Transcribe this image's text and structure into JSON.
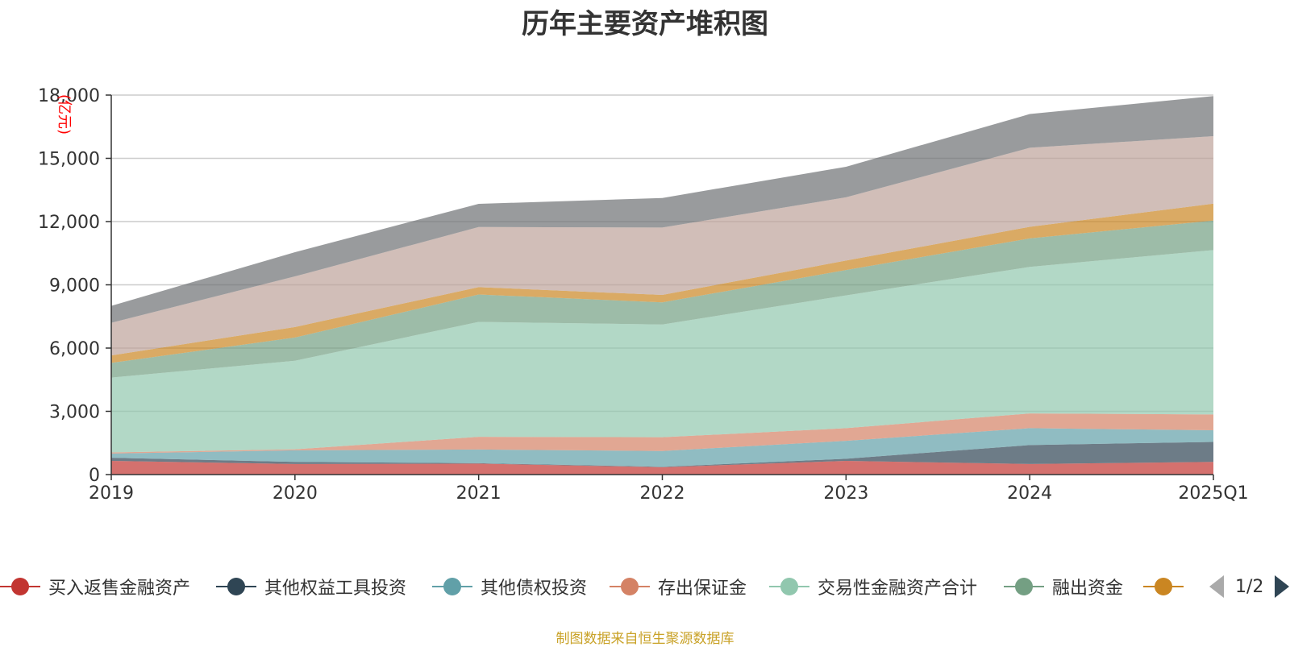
{
  "chart_data": {
    "type": "area",
    "stacked": true,
    "title": "历年主要资产堆积图",
    "ylabel": "(亿元)",
    "xlabel": "",
    "categories": [
      "2019",
      "2020",
      "2021",
      "2022",
      "2023",
      "2024",
      "2025Q1"
    ],
    "ylim": [
      0,
      18000
    ],
    "yticks": [
      0,
      3000,
      6000,
      9000,
      12000,
      15000,
      18000
    ],
    "ytick_labels": [
      "0",
      "3,000",
      "6,000",
      "9,000",
      "12,000",
      "15,000",
      "18,000"
    ],
    "grid": true,
    "legend_position": "bottom",
    "series": [
      {
        "name": "买入返售金融资产",
        "color": "#c23531",
        "values": [
          650,
          500,
          520,
          350,
          650,
          500,
          600
        ]
      },
      {
        "name": "其他权益工具投资",
        "color": "#2f4554",
        "values": [
          150,
          100,
          20,
          20,
          100,
          900,
          950
        ]
      },
      {
        "name": "其他债权投资",
        "color": "#61a0a8",
        "values": [
          200,
          550,
          650,
          750,
          850,
          800,
          550
        ]
      },
      {
        "name": "存出保证金",
        "color": "#d48265",
        "values": [
          50,
          50,
          600,
          650,
          600,
          700,
          750
        ]
      },
      {
        "name": "交易性金融资产合计",
        "color": "#91c7ae",
        "values": [
          3550,
          4200,
          5450,
          5350,
          6300,
          6950,
          7800
        ]
      },
      {
        "name": "融出资金",
        "color": "#749f83",
        "values": [
          700,
          1100,
          1300,
          1050,
          1200,
          1350,
          1400
        ]
      },
      {
        "name": "",
        "color": "#ca8622",
        "values": [
          350,
          500,
          350,
          350,
          450,
          550,
          800
        ]
      },
      {
        "name": "",
        "color": "#bda29a",
        "values": [
          1550,
          2400,
          2850,
          3200,
          3000,
          3750,
          3200
        ]
      },
      {
        "name": "",
        "color": "#6e7074",
        "values": [
          800,
          1150,
          1100,
          1400,
          1450,
          1600,
          1900
        ]
      }
    ]
  },
  "legend": {
    "items": [
      {
        "label": "买入返售金融资产",
        "color": "#c23531"
      },
      {
        "label": "其他权益工具投资",
        "color": "#2f4554"
      },
      {
        "label": "其他债权投资",
        "color": "#61a0a8"
      },
      {
        "label": "存出保证金",
        "color": "#d48265"
      },
      {
        "label": "交易性金融资产合计",
        "color": "#91c7ae"
      },
      {
        "label": "融出资金",
        "color": "#749f83"
      },
      {
        "label": "",
        "color": "#ca8622"
      }
    ],
    "page_indicator": "1/2"
  },
  "source_note": "制图数据来自恒生聚源数据库"
}
